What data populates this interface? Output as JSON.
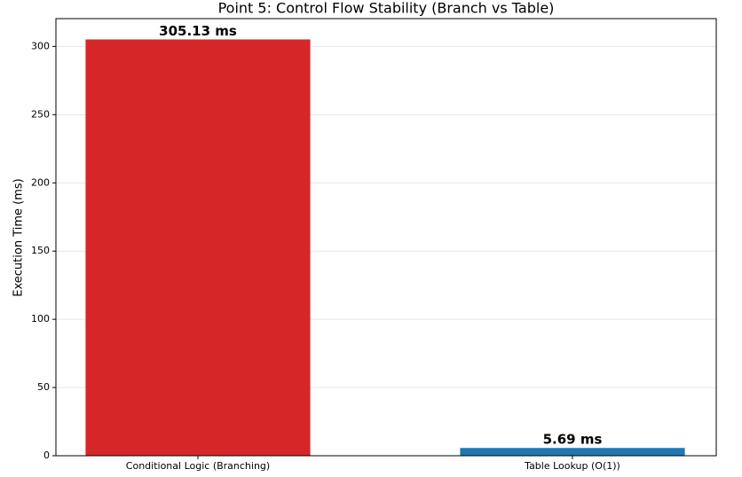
{
  "chart_data": {
    "type": "bar",
    "title": "Point 5: Control Flow Stability (Branch vs Table)",
    "y_label": "Execution Time (ms)",
    "categories": [
      "Conditional Logic (Branching)",
      "Table Lookup (O(1))"
    ],
    "values": [
      305.13,
      5.69
    ],
    "value_labels": [
      "305.13 ms",
      "5.69 ms"
    ],
    "colors": [
      "#d62728",
      "#1f77b4"
    ],
    "ylim": [
      0,
      320.39
    ],
    "yticks": [
      0,
      50,
      100,
      150,
      200,
      250,
      300
    ],
    "grid": true
  }
}
